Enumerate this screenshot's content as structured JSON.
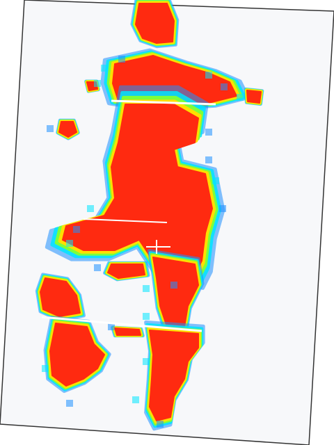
{
  "image": {
    "description_kind": "pressure-heatmap",
    "colormap": [
      "#1e90ff",
      "#00e5ff",
      "#7dff3a",
      "#ffe000",
      "#ff2a10"
    ],
    "background_color": "#f7f8fa",
    "page_color": "#ffffff",
    "border_color": "#444444"
  }
}
